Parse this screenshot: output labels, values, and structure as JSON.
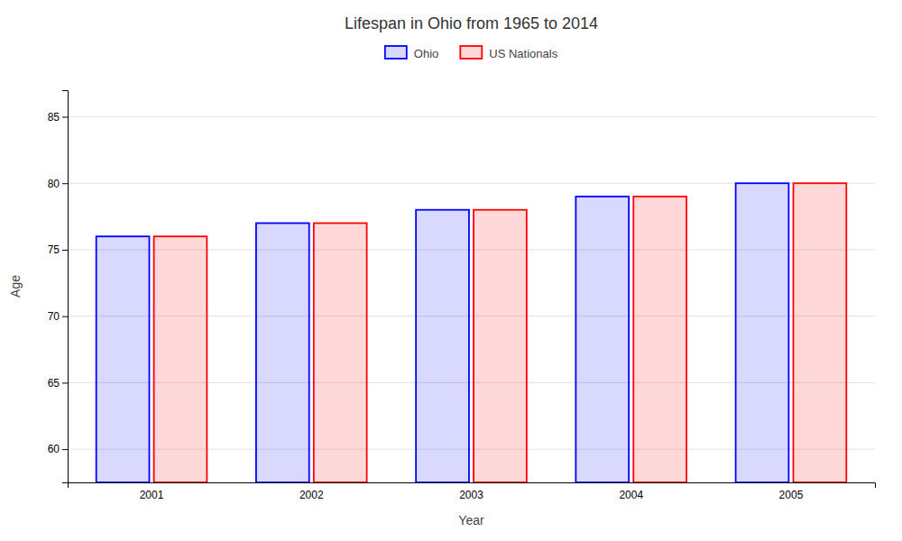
{
  "chart_data": {
    "type": "bar",
    "title": "Lifespan in Ohio from 1965 to 2014",
    "xlabel": "Year",
    "ylabel": "Age",
    "categories": [
      "2001",
      "2002",
      "2003",
      "2004",
      "2005"
    ],
    "series": [
      {
        "name": "Ohio",
        "color": "#0000ff",
        "values": [
          76,
          77,
          78,
          79,
          80
        ]
      },
      {
        "name": "US Nationals",
        "color": "#ff0000",
        "values": [
          76,
          77,
          78,
          79,
          80
        ]
      }
    ],
    "ylim": [
      57.5,
      87
    ],
    "yticks": [
      60,
      65,
      70,
      75,
      80,
      85
    ],
    "grid": true,
    "legend": "top"
  }
}
